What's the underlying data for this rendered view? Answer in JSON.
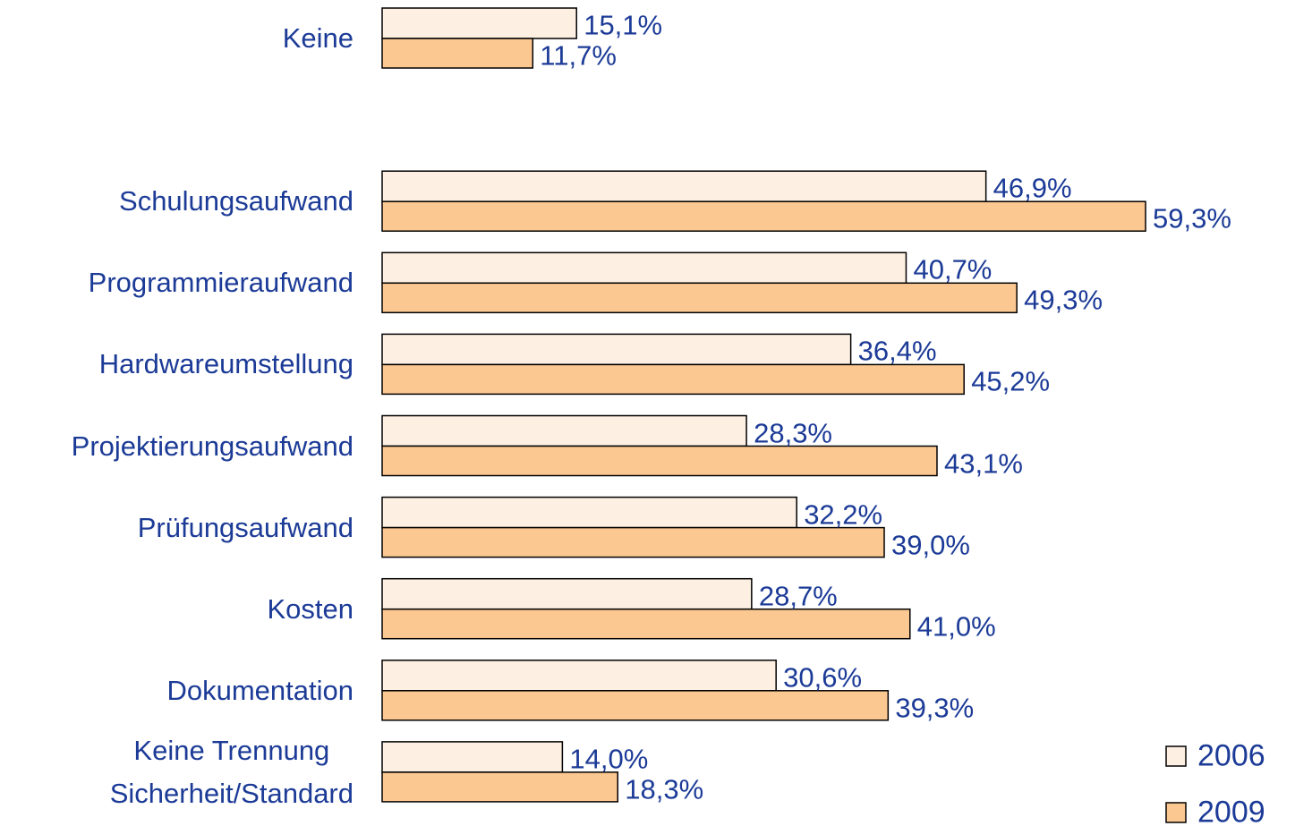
{
  "chart_data": {
    "type": "bar",
    "orientation": "horizontal",
    "categories": [
      "Keine",
      null,
      "Schulungsaufwand",
      "Programmieraufwand",
      "Hardwareumstellung",
      "Projektierungsaufwand",
      "Prüfungsaufwand",
      "Kosten",
      "Dokumentation",
      "Keine Trennung\nSicherheit/Standard"
    ],
    "series": [
      {
        "name": "2006",
        "color": "#fdefe2",
        "values": [
          15.1,
          null,
          46.9,
          40.7,
          36.4,
          28.3,
          32.2,
          28.7,
          30.6,
          14.0
        ],
        "value_labels": [
          "15,1%",
          null,
          "46,9%",
          "40,7%",
          "36,4%",
          "28,3%",
          "32,2%",
          "28,7%",
          "30,6%",
          "14,0%"
        ]
      },
      {
        "name": "2009",
        "color": "#fcc892",
        "values": [
          11.7,
          null,
          59.3,
          49.3,
          45.2,
          43.1,
          39.0,
          41.0,
          39.3,
          18.3
        ],
        "value_labels": [
          "11,7%",
          null,
          "59,3%",
          "49,3%",
          "45,2%",
          "43,1%",
          "39,0%",
          "41,0%",
          "39,3%",
          "18,3%"
        ]
      }
    ],
    "legend": "bottom-right"
  }
}
